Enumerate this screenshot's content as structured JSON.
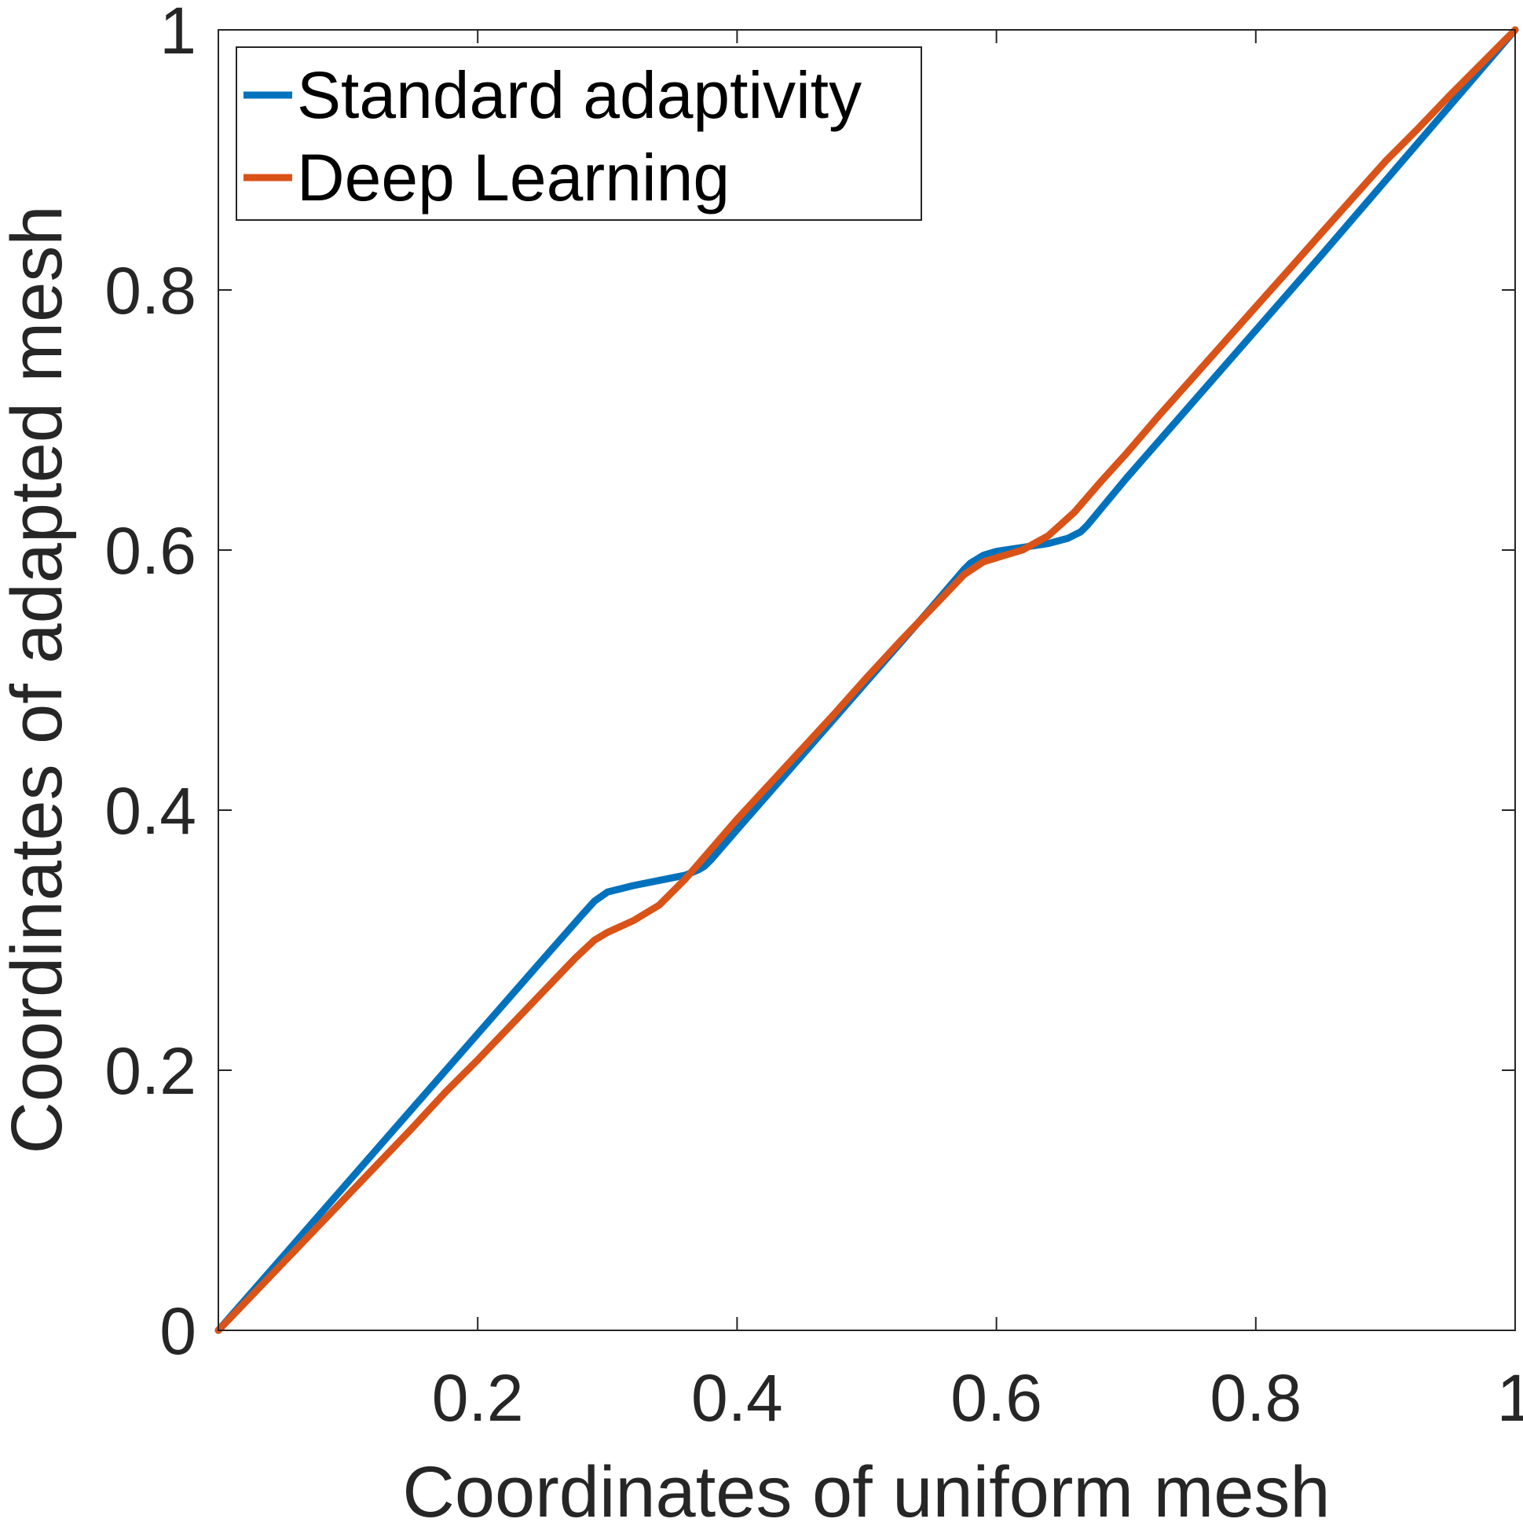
{
  "chart_data": {
    "type": "line",
    "title": "",
    "xlabel": "Coordinates of uniform mesh",
    "ylabel": "Coordinates of adapted mesh",
    "xlim": [
      0,
      1
    ],
    "ylim": [
      0,
      1
    ],
    "xticks": [
      0.2,
      0.4,
      0.6,
      0.8,
      1
    ],
    "xtick_labels": [
      "0.2",
      "0.4",
      "0.6",
      "0.8",
      "1"
    ],
    "yticks": [
      0,
      0.2,
      0.4,
      0.6,
      0.8,
      1
    ],
    "ytick_labels": [
      "0",
      "0.2",
      "0.4",
      "0.6",
      "0.8",
      "1"
    ],
    "grid": false,
    "legend_position": "top-left",
    "series": [
      {
        "name": "Standard adaptivity",
        "color": "#0072BD",
        "x": [
          0,
          0.05,
          0.1,
          0.15,
          0.2,
          0.25,
          0.28,
          0.29,
          0.3,
          0.32,
          0.34,
          0.36,
          0.37,
          0.375,
          0.38,
          0.4,
          0.45,
          0.5,
          0.55,
          0.575,
          0.58,
          0.59,
          0.6,
          0.62,
          0.64,
          0.655,
          0.665,
          0.67,
          0.7,
          0.75,
          0.8,
          0.85,
          0.9,
          0.95,
          1
        ],
        "y": [
          0,
          0.057,
          0.114,
          0.171,
          0.228,
          0.285,
          0.319,
          0.33,
          0.337,
          0.342,
          0.346,
          0.35,
          0.354,
          0.357,
          0.362,
          0.385,
          0.442,
          0.499,
          0.556,
          0.585,
          0.59,
          0.596,
          0.599,
          0.602,
          0.605,
          0.609,
          0.614,
          0.619,
          0.655,
          0.712,
          0.769,
          0.826,
          0.884,
          0.942,
          1
        ]
      },
      {
        "name": "Deep Learning",
        "color": "#D95319",
        "x": [
          0,
          0.025,
          0.05,
          0.075,
          0.1,
          0.125,
          0.15,
          0.175,
          0.2,
          0.225,
          0.25,
          0.275,
          0.29,
          0.3,
          0.32,
          0.34,
          0.36,
          0.38,
          0.4,
          0.425,
          0.45,
          0.475,
          0.5,
          0.525,
          0.55,
          0.575,
          0.59,
          0.6,
          0.62,
          0.64,
          0.66,
          0.68,
          0.7,
          0.725,
          0.75,
          0.775,
          0.8,
          0.825,
          0.85,
          0.875,
          0.9,
          0.925,
          0.95,
          0.975,
          1
        ],
        "y": [
          0,
          0.026,
          0.052,
          0.078,
          0.104,
          0.13,
          0.156,
          0.183,
          0.208,
          0.234,
          0.26,
          0.286,
          0.3,
          0.306,
          0.315,
          0.327,
          0.347,
          0.37,
          0.393,
          0.42,
          0.447,
          0.474,
          0.502,
          0.529,
          0.555,
          0.581,
          0.591,
          0.594,
          0.6,
          0.611,
          0.629,
          0.652,
          0.674,
          0.703,
          0.731,
          0.759,
          0.787,
          0.815,
          0.843,
          0.871,
          0.899,
          0.924,
          0.95,
          0.975,
          1
        ]
      }
    ]
  }
}
